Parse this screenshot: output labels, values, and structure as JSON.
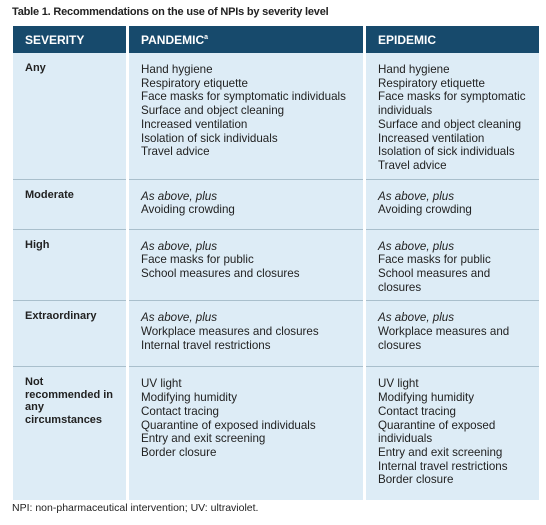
{
  "title": "Table 1. Recommendations on the use of NPIs by severity level",
  "table": {
    "header": {
      "severity": "SEVERITY",
      "pandemic": "PANDEMIC",
      "pandemic_sup": "a",
      "epidemic": "EPIDEMIC"
    },
    "rows": [
      {
        "severity": "Any",
        "pandemic": {
          "items": [
            "Hand hygiene",
            "Respiratory etiquette",
            "Face masks for symptomatic individuals",
            "Surface and object cleaning",
            "Increased ventilation",
            "Isolation of sick individuals",
            "Travel advice"
          ]
        },
        "epidemic": {
          "items": [
            "Hand hygiene",
            "Respiratory etiquette",
            "Face masks for symptomatic individuals",
            "Surface and object cleaning",
            "Increased ventilation",
            "Isolation of sick individuals",
            "Travel advice"
          ]
        }
      },
      {
        "severity": "Moderate",
        "pandemic": {
          "note": "As above, plus",
          "items": [
            "Avoiding crowding"
          ]
        },
        "epidemic": {
          "note": "As above, plus",
          "items": [
            "Avoiding crowding"
          ]
        }
      },
      {
        "severity": "High",
        "pandemic": {
          "note": "As above, plus",
          "items": [
            "Face masks for public",
            "School measures and closures"
          ]
        },
        "epidemic": {
          "note": "As above, plus",
          "items": [
            "Face masks for public",
            "School measures and closures"
          ]
        }
      },
      {
        "severity": "Extraordinary",
        "pandemic": {
          "note": "As above, plus",
          "items": [
            "Workplace measures and closures",
            "Internal travel restrictions"
          ]
        },
        "epidemic": {
          "note": "As above, plus",
          "items": [
            "Workplace measures and closures"
          ]
        }
      },
      {
        "severity": "Not recommended in any circumstances",
        "pandemic": {
          "items": [
            "UV light",
            "Modifying humidity",
            "Contact tracing",
            "Quarantine of exposed individuals",
            "Entry and exit screening",
            "Border closure"
          ]
        },
        "epidemic": {
          "items": [
            "UV light",
            "Modifying humidity",
            "Contact tracing",
            "Quarantine of exposed individuals",
            "Entry and exit screening",
            "Internal travel restrictions",
            "Border closure"
          ]
        }
      }
    ]
  },
  "footnote": "NPI: non-pharmaceutical intervention; UV: ultraviolet."
}
